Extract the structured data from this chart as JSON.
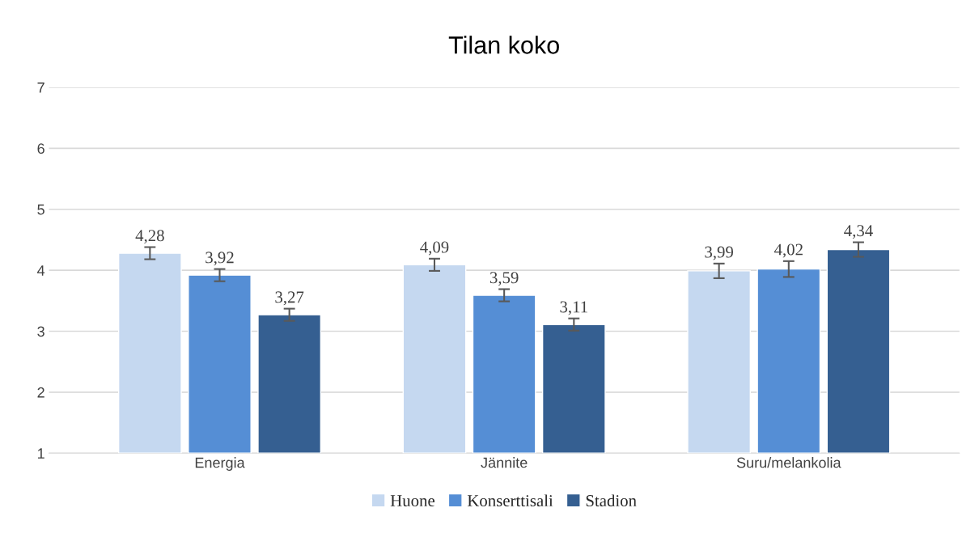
{
  "chart_data": {
    "type": "bar",
    "title": "Tilan koko",
    "categories": [
      "Energia",
      "Jännite",
      "Suru/melankolia"
    ],
    "series": [
      {
        "name": "Huone",
        "color": "#c5d8f0",
        "values": [
          4.28,
          4.09,
          3.99
        ],
        "errors": [
          0.1,
          0.1,
          0.12
        ],
        "value_labels": [
          "4,28",
          "4,09",
          "3,99"
        ]
      },
      {
        "name": "Konserttisali",
        "color": "#558ed5",
        "values": [
          3.92,
          3.59,
          4.02
        ],
        "errors": [
          0.1,
          0.1,
          0.13
        ],
        "value_labels": [
          "3,92",
          "3,59",
          "4,02"
        ]
      },
      {
        "name": "Stadion",
        "color": "#355f91",
        "values": [
          3.27,
          3.11,
          4.34
        ],
        "errors": [
          0.1,
          0.1,
          0.12
        ],
        "value_labels": [
          "3,27",
          "3,11",
          "4,34"
        ]
      }
    ],
    "ylim": [
      1,
      7
    ],
    "yticks": [
      1,
      2,
      3,
      4,
      5,
      6,
      7
    ],
    "grid": "y",
    "legend": "bottom"
  }
}
